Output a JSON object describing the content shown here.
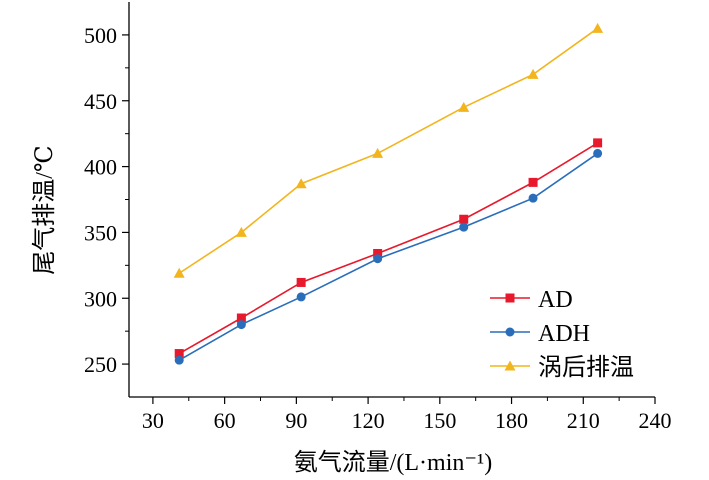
{
  "chart_data": {
    "type": "line",
    "title": "",
    "xlabel": "氨气流量/(L·min⁻¹)",
    "ylabel": "尾气排温/℃",
    "xlim": [
      20,
      240
    ],
    "ylim": [
      225,
      525
    ],
    "xticks": [
      30,
      60,
      90,
      120,
      150,
      180,
      210,
      240
    ],
    "yticks": [
      250,
      300,
      350,
      400,
      450,
      500
    ],
    "grid": false,
    "legend_position": "bottom-right",
    "series": [
      {
        "name": "AD",
        "color": "#e8192c",
        "marker": "square",
        "x": [
          41,
          67,
          92,
          124,
          160,
          189,
          216
        ],
        "y": [
          258,
          285,
          312,
          334,
          360,
          388,
          418
        ]
      },
      {
        "name": "ADH",
        "color": "#2a6ebb",
        "marker": "circle",
        "x": [
          41,
          67,
          92,
          124,
          160,
          189,
          216
        ],
        "y": [
          253,
          280,
          301,
          330,
          354,
          376,
          410
        ]
      },
      {
        "name": "涡后排温",
        "color": "#f2b51e",
        "marker": "triangle",
        "x": [
          41,
          67,
          92,
          124,
          160,
          189,
          216
        ],
        "y": [
          319,
          350,
          387,
          410,
          445,
          470,
          505
        ]
      }
    ]
  }
}
